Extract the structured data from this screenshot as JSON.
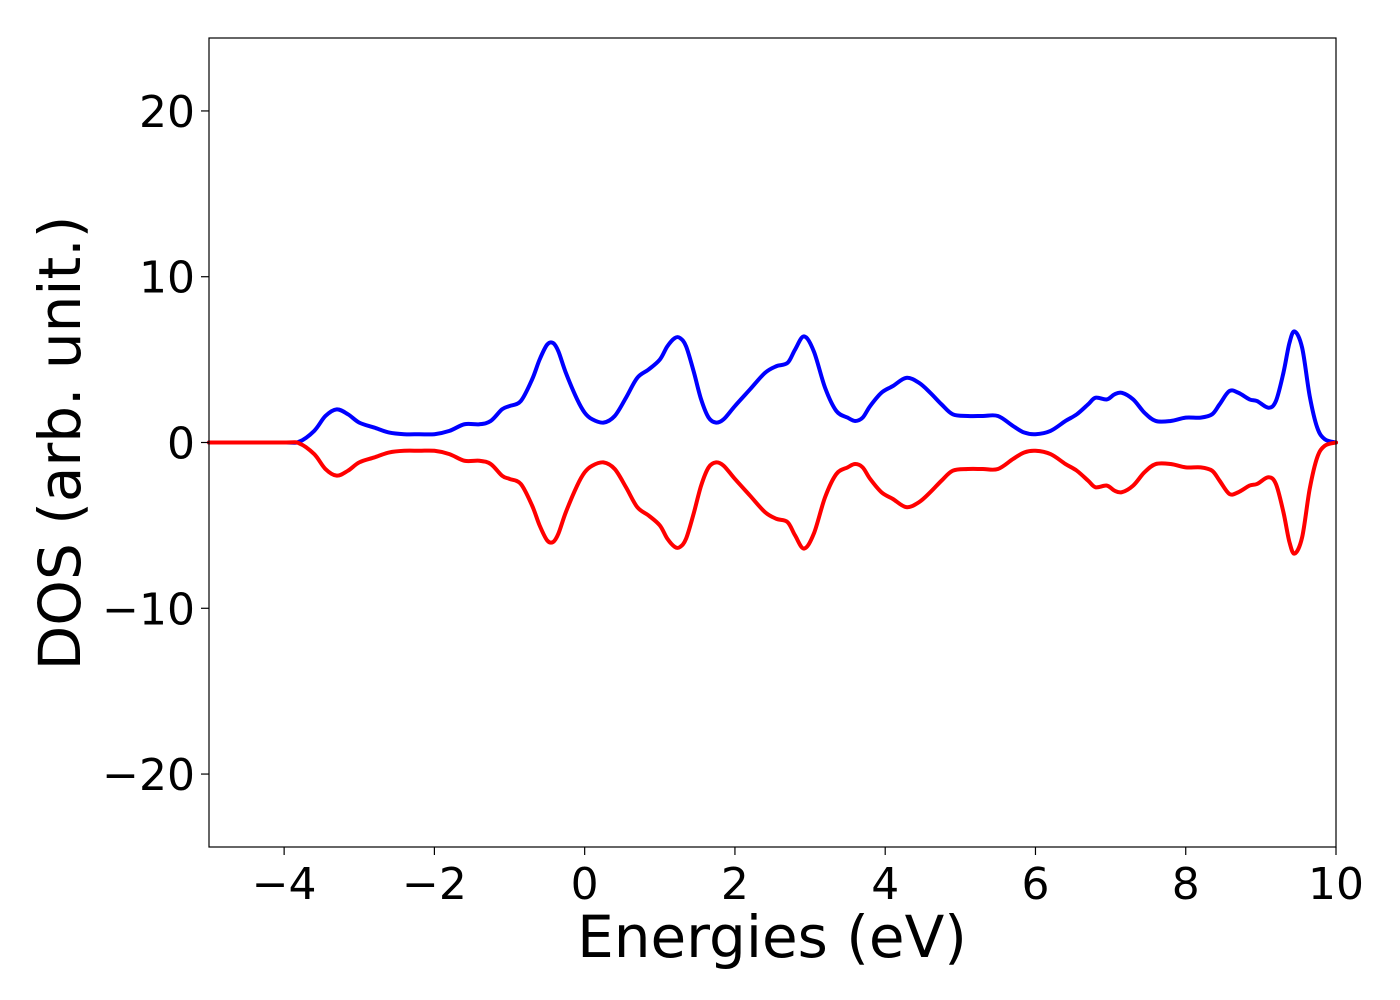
{
  "chart_data": {
    "type": "line",
    "title": "",
    "xlabel": "Energies (eV)",
    "ylabel": "DOS (arb. unit.)",
    "xlim": [
      -5,
      10
    ],
    "ylim": [
      -24.4,
      24.4
    ],
    "grid": false,
    "legend": "none",
    "x_ticks": [
      -4,
      -2,
      0,
      2,
      4,
      6,
      8,
      10
    ],
    "x_tick_labels": [
      "−4",
      "−2",
      "0",
      "2",
      "4",
      "6",
      "8",
      "10"
    ],
    "y_ticks": [
      -20,
      -10,
      0,
      10,
      20
    ],
    "y_tick_labels": [
      "−20",
      "−10",
      "0",
      "10",
      "20"
    ],
    "series": [
      {
        "color": "#0000ff",
        "x": [
          -5.0,
          -4.0,
          -3.8,
          -3.6,
          -3.45,
          -3.3,
          -3.15,
          -3.0,
          -2.8,
          -2.6,
          -2.4,
          -2.2,
          -2.0,
          -1.8,
          -1.6,
          -1.4,
          -1.25,
          -1.1,
          -1.0,
          -0.85,
          -0.7,
          -0.6,
          -0.5,
          -0.42,
          -0.35,
          -0.25,
          -0.1,
          0.0,
          0.1,
          0.25,
          0.4,
          0.55,
          0.7,
          0.85,
          1.0,
          1.1,
          1.2,
          1.27,
          1.35,
          1.45,
          1.55,
          1.65,
          1.75,
          1.85,
          2.0,
          2.2,
          2.4,
          2.55,
          2.7,
          2.8,
          2.92,
          3.05,
          3.2,
          3.35,
          3.5,
          3.6,
          3.7,
          3.8,
          3.95,
          4.1,
          4.28,
          4.45,
          4.6,
          4.75,
          4.9,
          5.1,
          5.3,
          5.5,
          5.7,
          5.85,
          6.0,
          6.2,
          6.4,
          6.55,
          6.7,
          6.8,
          6.95,
          7.05,
          7.15,
          7.3,
          7.45,
          7.6,
          7.8,
          8.0,
          8.2,
          8.35,
          8.45,
          8.58,
          8.7,
          8.85,
          8.95,
          9.1,
          9.2,
          9.3,
          9.38,
          9.45,
          9.55,
          9.65,
          9.75,
          9.85,
          10.0
        ],
        "y": [
          0.0,
          0.0,
          0.05,
          0.7,
          1.6,
          2.0,
          1.7,
          1.2,
          0.9,
          0.6,
          0.5,
          0.5,
          0.5,
          0.7,
          1.1,
          1.1,
          1.3,
          2.0,
          2.2,
          2.5,
          3.8,
          5.0,
          5.9,
          6.0,
          5.5,
          4.2,
          2.6,
          1.8,
          1.4,
          1.2,
          1.6,
          2.7,
          3.9,
          4.4,
          5.0,
          5.8,
          6.3,
          6.3,
          5.8,
          4.3,
          2.6,
          1.5,
          1.2,
          1.4,
          2.2,
          3.2,
          4.2,
          4.6,
          4.8,
          5.6,
          6.4,
          5.5,
          3.3,
          1.9,
          1.5,
          1.3,
          1.5,
          2.2,
          3.0,
          3.4,
          3.9,
          3.6,
          3.0,
          2.3,
          1.7,
          1.6,
          1.6,
          1.6,
          1.0,
          0.6,
          0.5,
          0.7,
          1.3,
          1.7,
          2.3,
          2.7,
          2.6,
          2.9,
          3.0,
          2.6,
          1.8,
          1.3,
          1.3,
          1.5,
          1.5,
          1.7,
          2.3,
          3.1,
          3.0,
          2.6,
          2.5,
          2.1,
          2.5,
          4.2,
          6.0,
          6.7,
          5.7,
          2.8,
          0.9,
          0.2,
          0.0
        ]
      },
      {
        "color": "#ff0000",
        "x": [
          -5.0,
          -4.0,
          -3.8,
          -3.6,
          -3.45,
          -3.3,
          -3.15,
          -3.0,
          -2.8,
          -2.6,
          -2.4,
          -2.2,
          -2.0,
          -1.8,
          -1.6,
          -1.4,
          -1.25,
          -1.1,
          -1.0,
          -0.85,
          -0.7,
          -0.6,
          -0.5,
          -0.42,
          -0.35,
          -0.25,
          -0.1,
          0.0,
          0.1,
          0.25,
          0.4,
          0.55,
          0.7,
          0.85,
          1.0,
          1.1,
          1.2,
          1.27,
          1.35,
          1.45,
          1.55,
          1.65,
          1.75,
          1.85,
          2.0,
          2.2,
          2.4,
          2.55,
          2.7,
          2.8,
          2.92,
          3.05,
          3.2,
          3.35,
          3.5,
          3.6,
          3.7,
          3.8,
          3.95,
          4.1,
          4.28,
          4.45,
          4.6,
          4.75,
          4.9,
          5.1,
          5.3,
          5.5,
          5.7,
          5.85,
          6.0,
          6.2,
          6.4,
          6.55,
          6.7,
          6.8,
          6.95,
          7.05,
          7.15,
          7.3,
          7.45,
          7.6,
          7.8,
          8.0,
          8.2,
          8.35,
          8.45,
          8.58,
          8.7,
          8.85,
          8.95,
          9.1,
          9.2,
          9.3,
          9.38,
          9.45,
          9.55,
          9.65,
          9.75,
          9.85,
          10.0
        ],
        "y": [
          0.0,
          0.0,
          -0.05,
          -0.7,
          -1.6,
          -2.0,
          -1.7,
          -1.2,
          -0.9,
          -0.6,
          -0.5,
          -0.5,
          -0.5,
          -0.7,
          -1.1,
          -1.1,
          -1.3,
          -2.0,
          -2.2,
          -2.5,
          -3.8,
          -5.0,
          -5.9,
          -6.0,
          -5.5,
          -4.2,
          -2.6,
          -1.8,
          -1.4,
          -1.2,
          -1.6,
          -2.7,
          -3.9,
          -4.4,
          -5.0,
          -5.8,
          -6.3,
          -6.3,
          -5.8,
          -4.3,
          -2.6,
          -1.5,
          -1.2,
          -1.4,
          -2.2,
          -3.2,
          -4.2,
          -4.6,
          -4.8,
          -5.6,
          -6.4,
          -5.5,
          -3.3,
          -1.9,
          -1.5,
          -1.3,
          -1.5,
          -2.2,
          -3.0,
          -3.4,
          -3.9,
          -3.6,
          -3.0,
          -2.3,
          -1.7,
          -1.6,
          -1.6,
          -1.6,
          -1.0,
          -0.6,
          -0.5,
          -0.7,
          -1.3,
          -1.7,
          -2.3,
          -2.7,
          -2.6,
          -2.9,
          -3.0,
          -2.6,
          -1.8,
          -1.3,
          -1.3,
          -1.5,
          -1.5,
          -1.7,
          -2.3,
          -3.1,
          -3.0,
          -2.6,
          -2.5,
          -2.1,
          -2.5,
          -4.2,
          -6.0,
          -6.7,
          -5.7,
          -2.8,
          -0.9,
          -0.2,
          0.0
        ]
      }
    ]
  }
}
